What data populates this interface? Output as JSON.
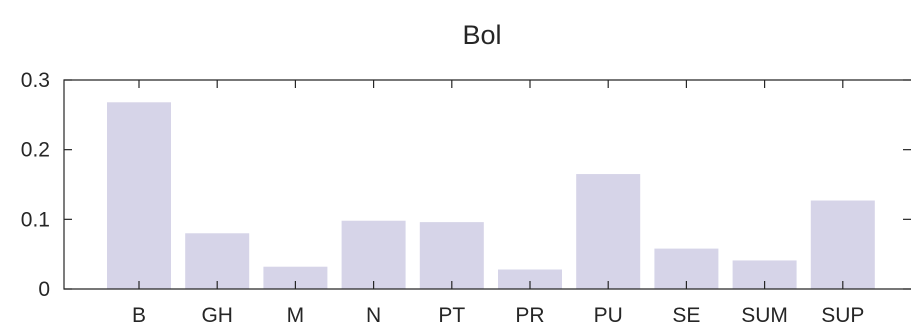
{
  "chart_data": {
    "type": "bar",
    "title": "Bol",
    "xlabel": "",
    "ylabel": "",
    "categories": [
      "B",
      "GH",
      "M",
      "N",
      "PT",
      "PR",
      "PU",
      "SE",
      "SUM",
      "SUP"
    ],
    "values": [
      0.268,
      0.08,
      0.032,
      0.098,
      0.096,
      0.028,
      0.165,
      0.058,
      0.041,
      0.127
    ],
    "ylim": [
      0,
      0.3
    ],
    "yticks": [
      0,
      0.1,
      0.2,
      0.3
    ],
    "ytick_labels": [
      "0",
      "0.1",
      "0.2",
      "0.3"
    ],
    "grid": false,
    "bar_color": "#d6d4e8",
    "axis_color": "#262626"
  }
}
